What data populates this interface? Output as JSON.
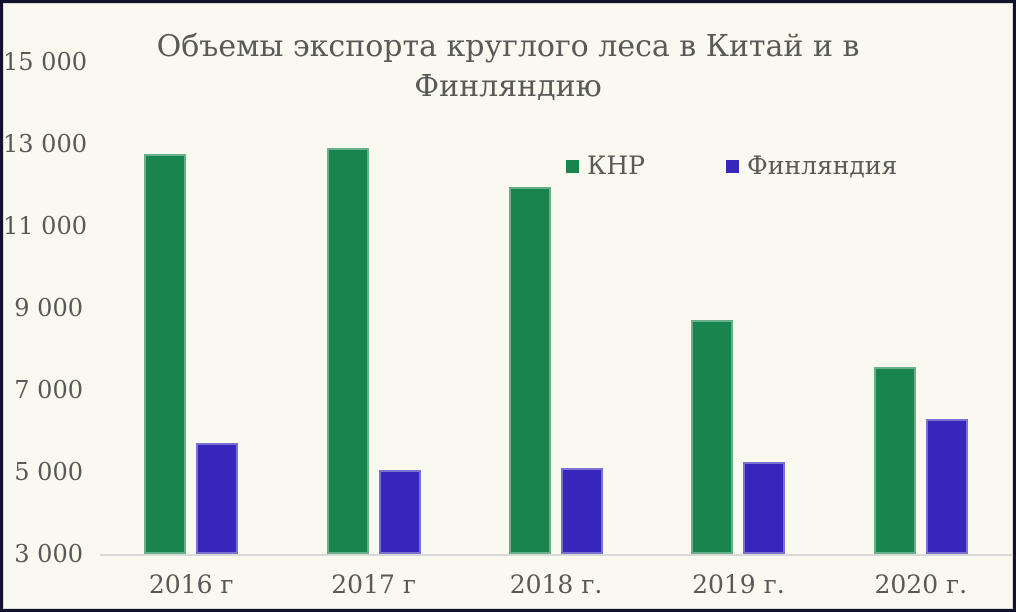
{
  "chart_data": {
    "type": "bar",
    "title": "Объемы экспорта круглого леса в Китай и в Финляндию",
    "title_lines": [
      "Объемы экспорта круглого леса в Китай и в",
      "Финляндию"
    ],
    "categories": [
      "2016 г",
      "2017 г",
      "2018 г.",
      "2019 г.",
      "2020 г."
    ],
    "series": [
      {
        "key": "knr",
        "name": "КНР",
        "color": "#19854E",
        "values": [
          12750,
          12900,
          11950,
          8700,
          7550
        ]
      },
      {
        "key": "finland",
        "name": "Финляндия",
        "color": "#3526BC",
        "values": [
          5700,
          5050,
          5100,
          5250,
          6300
        ]
      }
    ],
    "ylim": [
      3000,
      15000
    ],
    "ytick_step": 2000,
    "ytick_labels": [
      "3 000",
      "5 000",
      "7 000",
      "9 000",
      "11 000",
      "13 000",
      "15 000"
    ],
    "grid": false,
    "legend_position": "inside-top-center",
    "colors": {
      "background": "#FAF9EF",
      "frame_border": "#12122E",
      "inner_border": "#DBDAD0",
      "axis_line": "#D9D9D9",
      "text": "#595959"
    }
  }
}
